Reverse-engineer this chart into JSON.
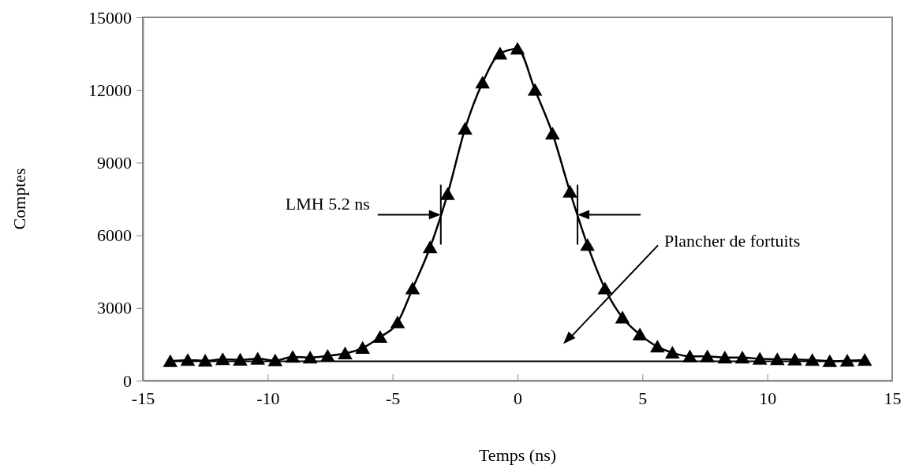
{
  "chart_data": {
    "type": "line",
    "xlabel": "Temps (ns)",
    "ylabel": "Comptes",
    "x": [
      -13.9,
      -13.2,
      -12.5,
      -11.8,
      -11.1,
      -10.4,
      -9.7,
      -9.0,
      -8.3,
      -7.6,
      -6.9,
      -6.2,
      -5.5,
      -4.8,
      -4.2,
      -3.5,
      -2.8,
      -2.1,
      -1.4,
      -0.7,
      0,
      0.7,
      1.4,
      2.1,
      2.8,
      3.5,
      4.2,
      4.9,
      5.6,
      6.2,
      6.9,
      7.6,
      8.3,
      9.0,
      9.7,
      10.4,
      11.1,
      11.8,
      12.5,
      13.2,
      13.9
    ],
    "series": [
      {
        "color": "#000000",
        "values": [
          800,
          850,
          820,
          880,
          860,
          900,
          830,
          980,
          950,
          1020,
          1120,
          1350,
          1800,
          2400,
          3800,
          5500,
          7700,
          10400,
          12300,
          13500,
          13700,
          12000,
          10200,
          7800,
          5600,
          3800,
          2600,
          1900,
          1400,
          1150,
          1000,
          1000,
          950,
          950,
          900,
          880,
          870,
          850,
          800,
          820,
          850
        ]
      }
    ],
    "marker": "triangle",
    "line_style": "solid",
    "xlim": [
      -15,
      15
    ],
    "xticks": [
      -15,
      -10,
      -5,
      0,
      5,
      10,
      15
    ],
    "ylim": [
      0,
      15000
    ],
    "yticks": [
      0,
      3000,
      6000,
      9000,
      12000,
      15000
    ],
    "grid": false,
    "ref_lines": [
      {
        "axis": "y",
        "value": 800,
        "color": "#000000"
      }
    ],
    "annotations": [
      "LMH 5.2 ns",
      "Plancher de fortuits"
    ]
  }
}
